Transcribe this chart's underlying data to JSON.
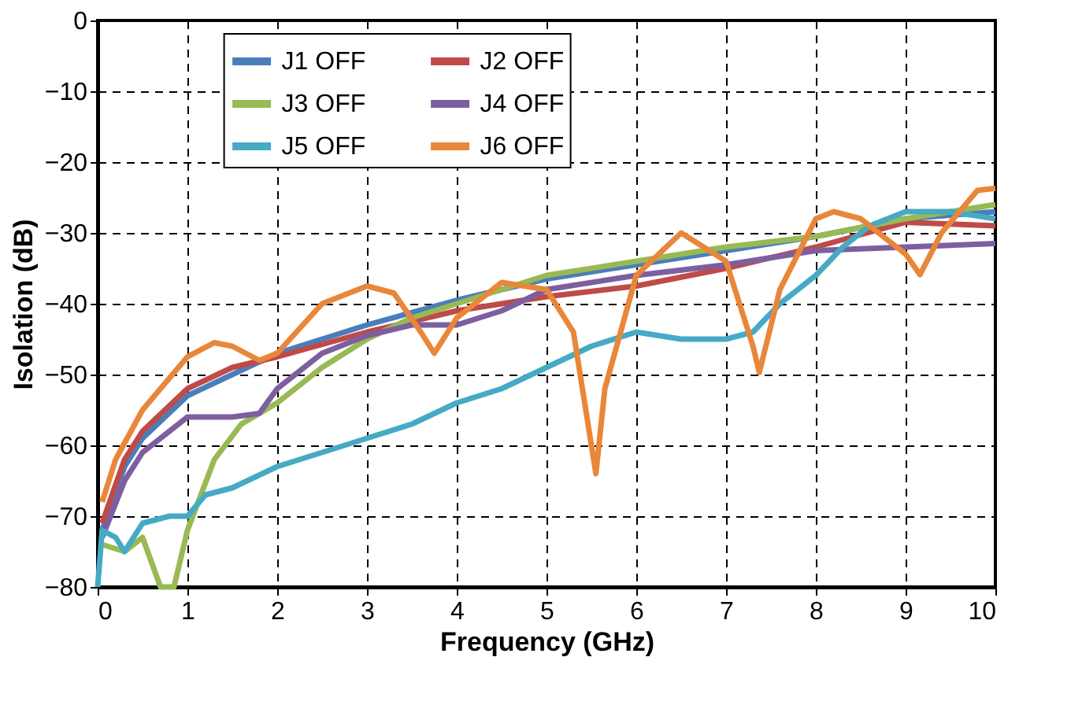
{
  "chart_data": {
    "type": "line",
    "xlabel": "Frequency (GHz)",
    "ylabel": "Isolation (dB)",
    "xlim": [
      0,
      10
    ],
    "xticks": [
      0,
      1,
      2,
      3,
      4,
      5,
      6,
      7,
      8,
      9,
      10
    ],
    "ylim": [
      -80,
      0
    ],
    "yticks": [
      -80,
      -70,
      -60,
      -50,
      -40,
      -30,
      -20,
      -10,
      0
    ],
    "grid": true,
    "legend": "top",
    "marker": "none",
    "line_style": "solid",
    "series": [
      {
        "name": "J1 OFF",
        "color": "#4a7ebb",
        "x": [
          0.05,
          0.3,
          0.5,
          1,
          1.5,
          2,
          3,
          4,
          5,
          6,
          7,
          8,
          9,
          10
        ],
        "values": [
          -72,
          -63,
          -59,
          -53,
          -50,
          -47,
          -43,
          -39.5,
          -36.5,
          -34.5,
          -32.5,
          -30.5,
          -28,
          -27
        ]
      },
      {
        "name": "J2 OFF",
        "color": "#be4b48",
        "x": [
          0.05,
          0.3,
          0.5,
          1,
          1.5,
          2,
          3,
          4,
          5,
          6,
          7,
          8,
          9,
          10
        ],
        "values": [
          -71,
          -62,
          -58,
          -52,
          -49,
          -47.5,
          -44,
          -41,
          -39,
          -37.5,
          -35,
          -32,
          -28.5,
          -29
        ]
      },
      {
        "name": "J3 OFF",
        "color": "#98b954",
        "x": [
          0.05,
          0.3,
          0.5,
          0.7,
          0.85,
          1,
          1.3,
          1.6,
          2,
          2.5,
          3,
          3.5,
          4,
          5,
          6,
          7,
          8,
          9,
          10
        ],
        "values": [
          -74,
          -75,
          -73,
          -80,
          -80,
          -72,
          -62,
          -57,
          -54,
          -49,
          -45,
          -42,
          -40,
          -36,
          -34,
          -32,
          -30.5,
          -28,
          -26
        ]
      },
      {
        "name": "J4 OFF",
        "color": "#7d5fa0",
        "x": [
          0.05,
          0.3,
          0.5,
          1,
          1.5,
          1.8,
          2,
          2.5,
          3,
          3.5,
          4,
          4.5,
          5,
          6,
          7,
          8,
          9,
          10
        ],
        "values": [
          -73,
          -65,
          -61,
          -56,
          -56,
          -55.5,
          -52,
          -47,
          -44.5,
          -43,
          -43,
          -41,
          -38,
          -36,
          -34.5,
          -32.5,
          -32,
          -31.5
        ]
      },
      {
        "name": "J5 OFF",
        "color": "#46aac5",
        "x": [
          0,
          0.05,
          0.2,
          0.3,
          0.5,
          0.8,
          1,
          1.2,
          1.5,
          2,
          2.5,
          3,
          3.5,
          4,
          4.5,
          5,
          5.5,
          6,
          6.5,
          7,
          7.3,
          7.6,
          8,
          8.3,
          8.6,
          9,
          9.5,
          10
        ],
        "values": [
          -80,
          -72,
          -73,
          -75,
          -71,
          -70,
          -70,
          -67,
          -66,
          -63,
          -61,
          -59,
          -57,
          -54,
          -52,
          -49,
          -46,
          -44,
          -45,
          -45,
          -44,
          -40,
          -36,
          -32,
          -29,
          -27,
          -27,
          -28
        ]
      },
      {
        "name": "J6 OFF",
        "color": "#e8873a",
        "x": [
          0.05,
          0.2,
          0.5,
          1,
          1.3,
          1.5,
          1.8,
          2,
          2.5,
          3,
          3.3,
          3.6,
          3.75,
          4,
          4.5,
          5,
          5.3,
          5.5,
          5.55,
          5.65,
          6,
          6.5,
          7,
          7.3,
          7.37,
          7.6,
          8,
          8.2,
          8.5,
          9,
          9.16,
          9.4,
          9.8,
          10
        ],
        "values": [
          -68,
          -62,
          -55,
          -47.5,
          -45.5,
          -46,
          -48,
          -47,
          -40,
          -37.5,
          -38.5,
          -44,
          -47,
          -42,
          -37,
          -38,
          -44,
          -60,
          -64,
          -52,
          -36,
          -30,
          -34,
          -46,
          -49.7,
          -38,
          -28,
          -27,
          -28,
          -33,
          -35.9,
          -30,
          -24,
          -23.7
        ]
      }
    ]
  }
}
